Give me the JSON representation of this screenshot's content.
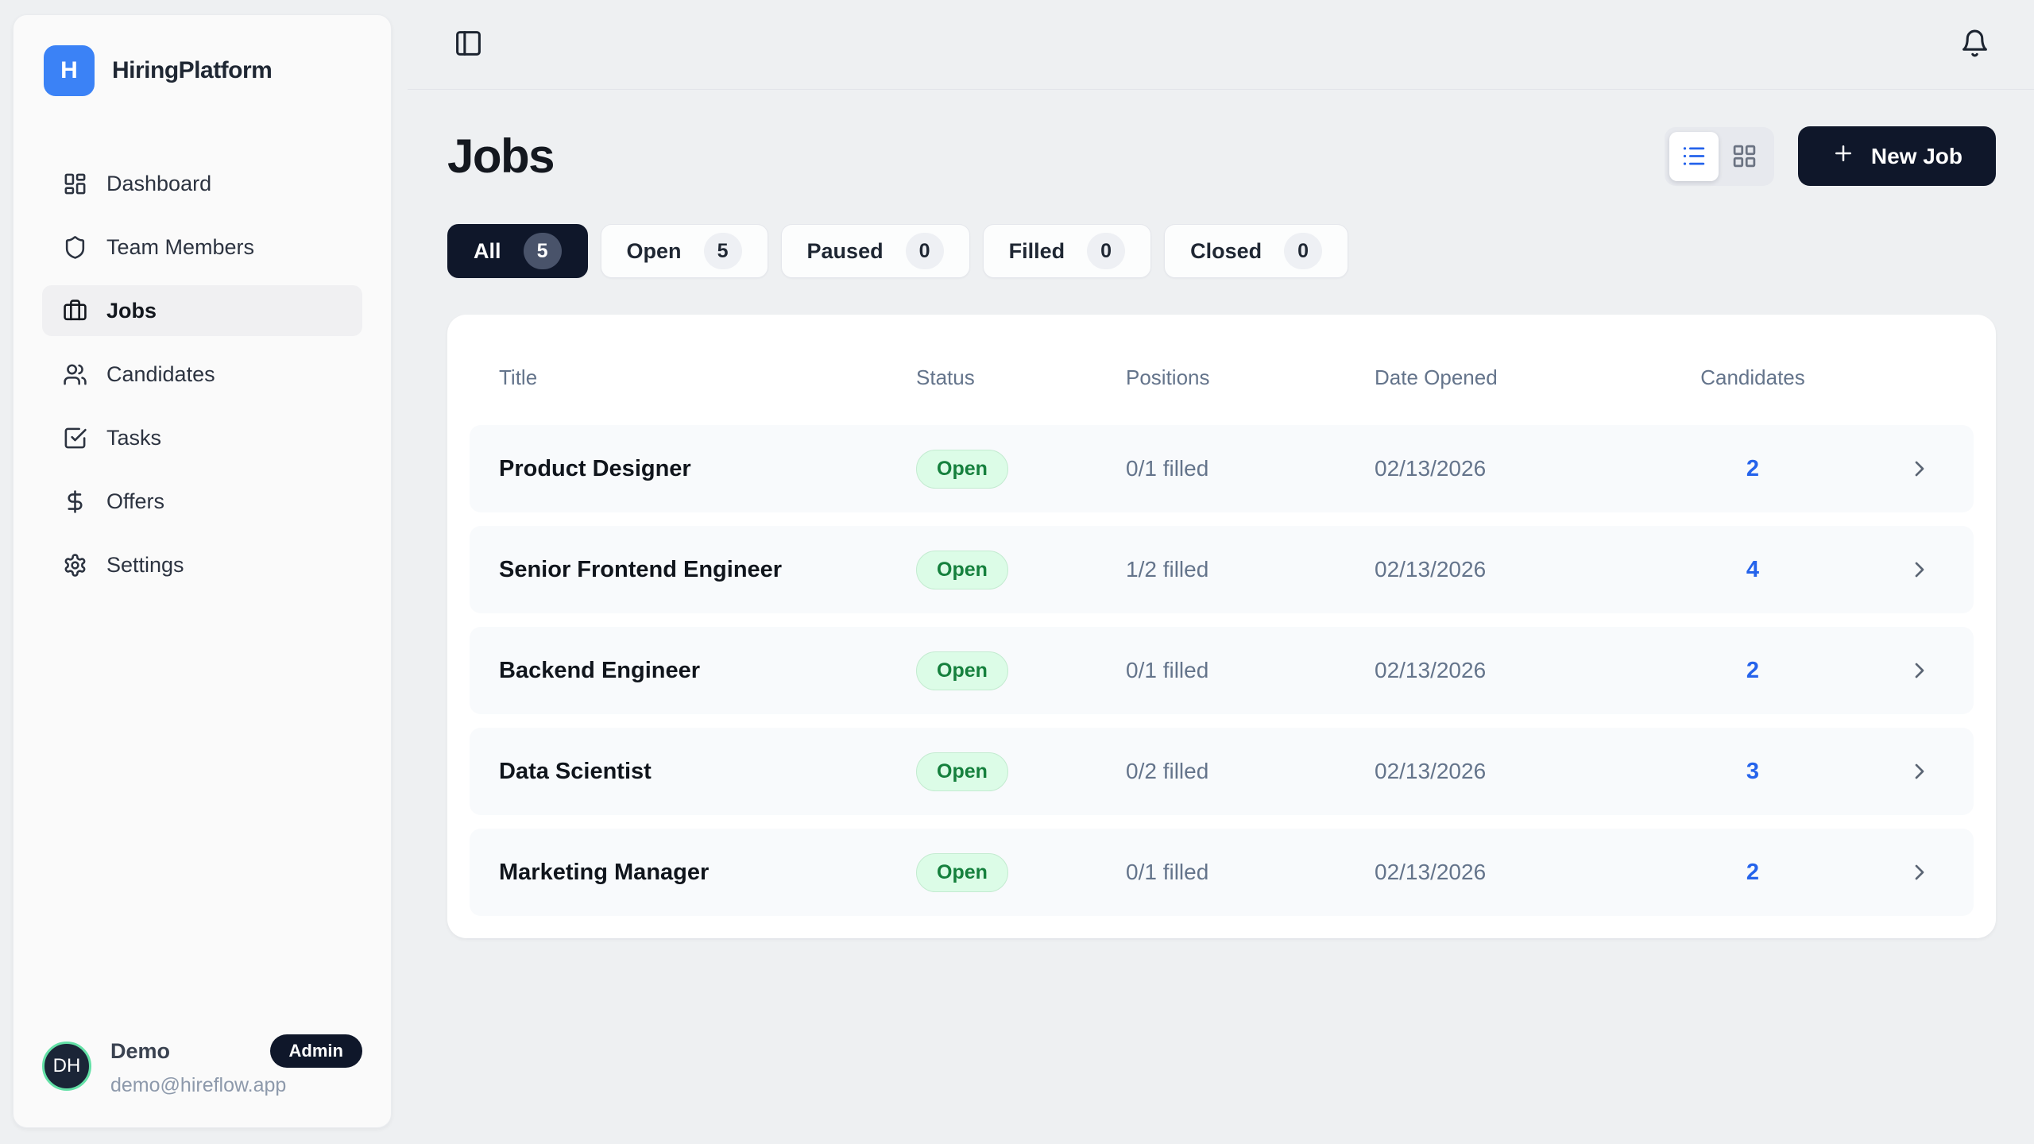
{
  "app": {
    "name": "HiringPlatform",
    "logo_letter": "H"
  },
  "sidebar": {
    "items": [
      {
        "label": "Dashboard",
        "icon": "layout-dashboard",
        "active": false
      },
      {
        "label": "Team Members",
        "icon": "shield",
        "active": false
      },
      {
        "label": "Jobs",
        "icon": "briefcase",
        "active": true
      },
      {
        "label": "Candidates",
        "icon": "users",
        "active": false
      },
      {
        "label": "Tasks",
        "icon": "check-square",
        "active": false
      },
      {
        "label": "Offers",
        "icon": "dollar-sign",
        "active": false
      },
      {
        "label": "Settings",
        "icon": "gear",
        "active": false
      }
    ],
    "user": {
      "initials": "DH",
      "name": "Demo",
      "role_badge": "Admin",
      "email": "demo@hireflow.app"
    }
  },
  "topbar": {
    "icons": [
      "panel-left",
      "bell"
    ]
  },
  "header": {
    "title": "Jobs",
    "new_job_label": "New Job",
    "view_modes": [
      {
        "icon": "list",
        "active": true
      },
      {
        "icon": "layout-grid",
        "active": false
      }
    ]
  },
  "filters": [
    {
      "label": "All",
      "count": "5",
      "active": true
    },
    {
      "label": "Open",
      "count": "5",
      "active": false
    },
    {
      "label": "Paused",
      "count": "0",
      "active": false
    },
    {
      "label": "Filled",
      "count": "0",
      "active": false
    },
    {
      "label": "Closed",
      "count": "0",
      "active": false
    }
  ],
  "table": {
    "columns": [
      "Title",
      "Status",
      "Positions",
      "Date Opened",
      "Candidates"
    ],
    "rows": [
      {
        "title": "Product Designer",
        "status": "Open",
        "positions": "0/1 filled",
        "date_opened": "02/13/2026",
        "candidates": "2"
      },
      {
        "title": "Senior Frontend Engineer",
        "status": "Open",
        "positions": "1/2 filled",
        "date_opened": "02/13/2026",
        "candidates": "4"
      },
      {
        "title": "Backend Engineer",
        "status": "Open",
        "positions": "0/1 filled",
        "date_opened": "02/13/2026",
        "candidates": "2"
      },
      {
        "title": "Data Scientist",
        "status": "Open",
        "positions": "0/2 filled",
        "date_opened": "02/13/2026",
        "candidates": "3"
      },
      {
        "title": "Marketing Manager",
        "status": "Open",
        "positions": "0/1 filled",
        "date_opened": "02/13/2026",
        "candidates": "2"
      }
    ]
  },
  "colors": {
    "brand_blue": "#3b82f6",
    "accent_blue": "#2563eb",
    "navy": "#0f172a",
    "open_badge_bg": "#dcfce7",
    "open_badge_text": "#15803d",
    "page_bg": "#eef0f2",
    "row_bg": "#f8fafc",
    "avatar_ring": "#63e0a6"
  }
}
